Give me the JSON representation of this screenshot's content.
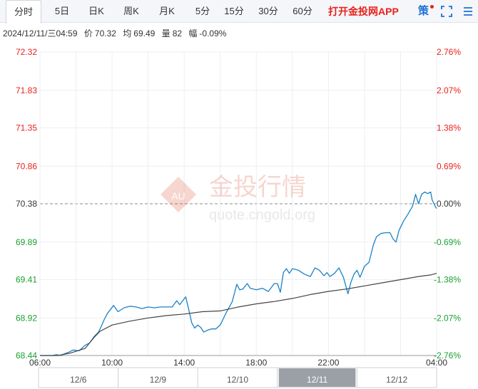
{
  "tabs": [
    {
      "label": "分时",
      "active": true
    },
    {
      "label": "5日"
    },
    {
      "label": "日K"
    },
    {
      "label": "周K"
    },
    {
      "label": "月K"
    },
    {
      "label": "5分"
    },
    {
      "label": "15分"
    },
    {
      "label": "30分"
    },
    {
      "label": "60分"
    }
  ],
  "app_link": "打开金投网APP",
  "policy_label": "策",
  "info": {
    "datetime": "2024/12/11/三04:59",
    "price_label": "价",
    "price": "70.32",
    "avg_label": "均",
    "avg": "69.49",
    "volume_label": "量",
    "volume": "82",
    "change_label": "幅",
    "change": "-0.09%"
  },
  "watermark": {
    "brand": "金投行情",
    "url": "quote.cngold.org",
    "logo_text": "AU"
  },
  "colors": {
    "up": "#e8211b",
    "down": "#1aa032",
    "flat": "#333333",
    "price_line": "#1b83c4",
    "avg_line": "#444444"
  },
  "chart_data": {
    "type": "line",
    "prev_close": 70.38,
    "ylim": [
      68.44,
      72.32
    ],
    "y_ticks": [
      72.32,
      71.83,
      71.35,
      70.86,
      70.38,
      69.89,
      69.41,
      68.92,
      68.44
    ],
    "y_tick_labels": [
      "72.32",
      "71.83",
      "71.35",
      "70.86",
      "70.38",
      "69.89",
      "69.41",
      "68.92",
      "68.44"
    ],
    "pct_tick_labels": [
      "2.76%",
      "2.07%",
      "1.38%",
      "0.69%",
      "0.00%",
      "-0.69%",
      "-1.38%",
      "-2.07%",
      "-2.76%"
    ],
    "x_tick_labels": [
      "06:00",
      "10:00",
      "14:00",
      "18:00",
      "22:00",
      "04:00"
    ],
    "x_tick_minutes": [
      0,
      240,
      480,
      720,
      960,
      1320
    ],
    "x_total_minutes": 1320,
    "series": [
      {
        "name": "价",
        "x": [
          0,
          20,
          40,
          55,
          70,
          80,
          95,
          110,
          130,
          150,
          165,
          180,
          195,
          205,
          215,
          225,
          235,
          245,
          260,
          280,
          300,
          320,
          340,
          360,
          380,
          400,
          420,
          440,
          455,
          465,
          475,
          485,
          495,
          505,
          515,
          525,
          535,
          545,
          555,
          570,
          585,
          600,
          620,
          640,
          655,
          665,
          675,
          690,
          700,
          720,
          740,
          760,
          780,
          790,
          800,
          810,
          820,
          830,
          840,
          860,
          880,
          900,
          915,
          930,
          945,
          955,
          965,
          980,
          995,
          1010,
          1025,
          1035,
          1045,
          1055,
          1065,
          1080,
          1095,
          1110,
          1120,
          1135,
          1150,
          1165,
          1175,
          1185,
          1195,
          1210,
          1225,
          1240,
          1250,
          1260,
          1270,
          1280,
          1290,
          1300,
          1305,
          1315,
          1320
        ],
        "values": [
          68.44,
          68.44,
          68.44,
          68.45,
          68.44,
          68.46,
          68.48,
          68.51,
          68.5,
          68.57,
          68.6,
          68.68,
          68.74,
          68.82,
          68.91,
          68.98,
          69.03,
          69.08,
          69.0,
          69.05,
          69.07,
          69.06,
          69.04,
          69.06,
          69.05,
          69.06,
          69.06,
          69.06,
          69.14,
          69.09,
          69.14,
          69.19,
          69.03,
          68.86,
          68.79,
          68.83,
          68.8,
          68.74,
          68.76,
          68.78,
          68.78,
          68.83,
          68.99,
          69.13,
          69.35,
          69.28,
          69.29,
          69.36,
          69.3,
          69.28,
          69.3,
          69.26,
          69.36,
          69.36,
          69.25,
          69.5,
          69.55,
          69.49,
          69.55,
          69.53,
          69.48,
          69.45,
          69.56,
          69.53,
          69.46,
          69.5,
          69.45,
          69.49,
          69.56,
          69.44,
          69.23,
          69.38,
          69.48,
          69.53,
          69.44,
          69.58,
          69.63,
          69.86,
          69.96,
          70.0,
          70.01,
          70.01,
          69.93,
          69.89,
          70.04,
          70.16,
          70.25,
          70.35,
          70.5,
          70.38,
          70.5,
          70.53,
          70.51,
          70.53,
          70.43,
          70.35,
          70.32
        ]
      },
      {
        "name": "均",
        "x": [
          0,
          60,
          100,
          150,
          180,
          200,
          240,
          300,
          360,
          420,
          480,
          540,
          600,
          660,
          720,
          780,
          840,
          900,
          960,
          1020,
          1080,
          1140,
          1200,
          1260,
          1300,
          1320
        ],
        "values": [
          68.44,
          68.44,
          68.47,
          68.53,
          68.67,
          68.75,
          68.83,
          68.88,
          68.92,
          68.95,
          68.97,
          69.0,
          69.01,
          69.06,
          69.1,
          69.13,
          69.17,
          69.22,
          69.26,
          69.29,
          69.33,
          69.37,
          69.41,
          69.45,
          69.47,
          69.49
        ]
      }
    ]
  },
  "navigator": {
    "labels": [
      "12/6",
      "12/9",
      "12/10",
      "12/11",
      "12/12"
    ],
    "selected_index": 3
  }
}
